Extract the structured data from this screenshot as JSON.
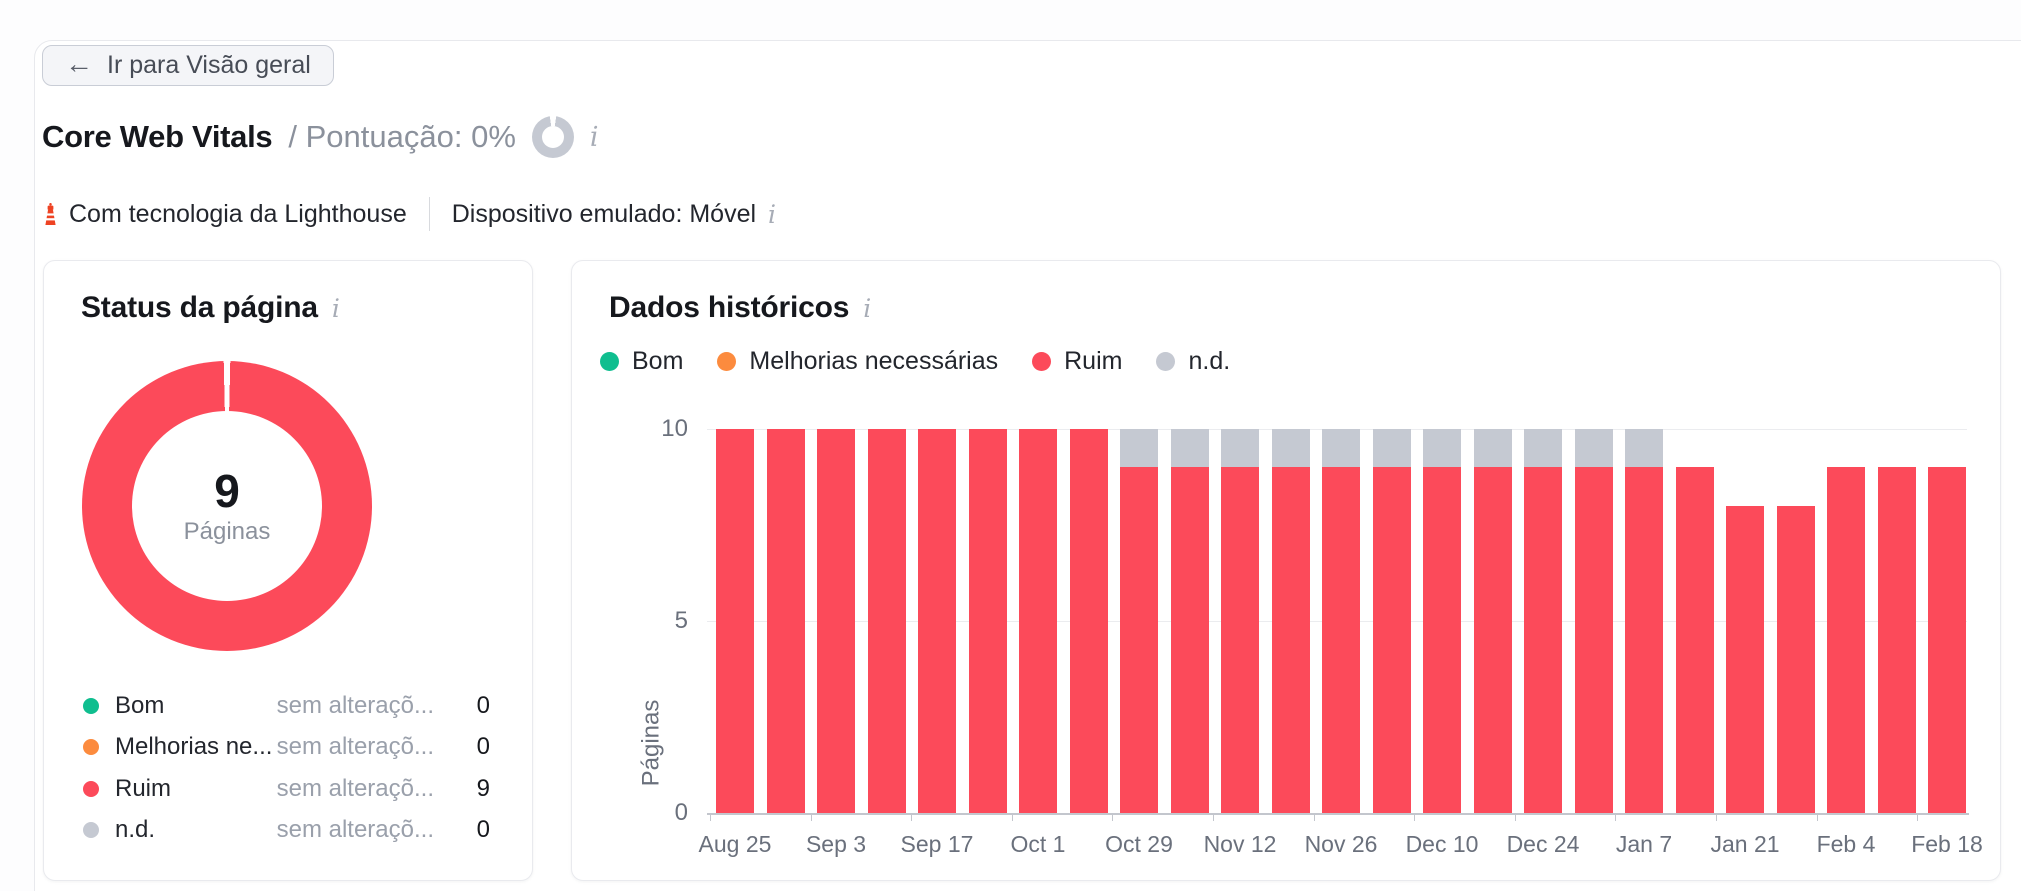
{
  "header": {
    "back_button": "Ir para Visão geral",
    "title": "Core Web Vitals",
    "score_label": "/ Pontuação: 0%",
    "powered_by": "Com tecnologia da Lighthouse",
    "device": "Dispositivo emulado: Móvel",
    "info_glyph": "i"
  },
  "colors": {
    "good": "#0fbe8f",
    "needs_improvement": "#fc8b3e",
    "poor": "#fc4a5a",
    "nd": "#c5c9d2"
  },
  "status_card": {
    "title": "Status da página",
    "donut": {
      "total": "9",
      "total_label": "Páginas",
      "poor_share": 9,
      "total_pages": 9
    },
    "rows": [
      {
        "label": "Bom",
        "change": "sem alteraçõ...",
        "count": "0",
        "color": "#0fbe8f"
      },
      {
        "label": "Melhorias ne...",
        "change": "sem alteraçõ...",
        "count": "0",
        "color": "#fc8b3e"
      },
      {
        "label": "Ruim",
        "change": "sem alteraçõ...",
        "count": "9",
        "color": "#fc4a5a"
      },
      {
        "label": "n.d.",
        "change": "sem alteraçõ...",
        "count": "0",
        "color": "#c5c9d2"
      }
    ]
  },
  "historical_card": {
    "title": "Dados históricos",
    "legend": [
      {
        "label": "Bom",
        "color": "#0fbe8f"
      },
      {
        "label": "Melhorias necessárias",
        "color": "#fc8b3e"
      },
      {
        "label": "Ruim",
        "color": "#fc4a5a"
      },
      {
        "label": "n.d.",
        "color": "#c5c9d2"
      }
    ]
  },
  "chart_data": {
    "type": "bar",
    "stacked": true,
    "title": "Dados históricos",
    "xlabel": "",
    "ylabel": "Páginas",
    "ylim": [
      0,
      10
    ],
    "yticks": [
      0,
      5,
      10
    ],
    "grid": true,
    "legend_position": "top",
    "categories": [
      "Aug 25",
      "",
      "Sep 3",
      "",
      "Sep 17",
      "",
      "Oct 1",
      "",
      "Oct 29",
      "",
      "Nov 12",
      "",
      "Nov 26",
      "",
      "Dec 10",
      "",
      "Dec 24",
      "",
      "Jan 7",
      "",
      "Jan 21",
      "",
      "Feb 4",
      "",
      "Feb 18"
    ],
    "series": [
      {
        "name": "Bom",
        "color": "#0fbe8f",
        "values": [
          0,
          0,
          0,
          0,
          0,
          0,
          0,
          0,
          0,
          0,
          0,
          0,
          0,
          0,
          0,
          0,
          0,
          0,
          0,
          0,
          0,
          0,
          0,
          0,
          0
        ]
      },
      {
        "name": "Melhorias necessárias",
        "color": "#fc8b3e",
        "values": [
          0,
          0,
          0,
          0,
          0,
          0,
          0,
          0,
          0,
          0,
          0,
          0,
          0,
          0,
          0,
          0,
          0,
          0,
          0,
          0,
          0,
          0,
          0,
          0,
          0
        ]
      },
      {
        "name": "Ruim",
        "color": "#fc4a5a",
        "values": [
          10,
          10,
          10,
          10,
          10,
          10,
          10,
          10,
          9,
          9,
          9,
          9,
          9,
          9,
          9,
          9,
          9,
          9,
          9,
          9,
          8,
          8,
          9,
          9,
          9
        ]
      },
      {
        "name": "n.d.",
        "color": "#c5c9d2",
        "values": [
          0,
          0,
          0,
          0,
          0,
          0,
          0,
          0,
          1,
          1,
          1,
          1,
          1,
          1,
          1,
          1,
          1,
          1,
          1,
          0,
          0,
          0,
          0,
          0,
          0
        ]
      }
    ]
  }
}
